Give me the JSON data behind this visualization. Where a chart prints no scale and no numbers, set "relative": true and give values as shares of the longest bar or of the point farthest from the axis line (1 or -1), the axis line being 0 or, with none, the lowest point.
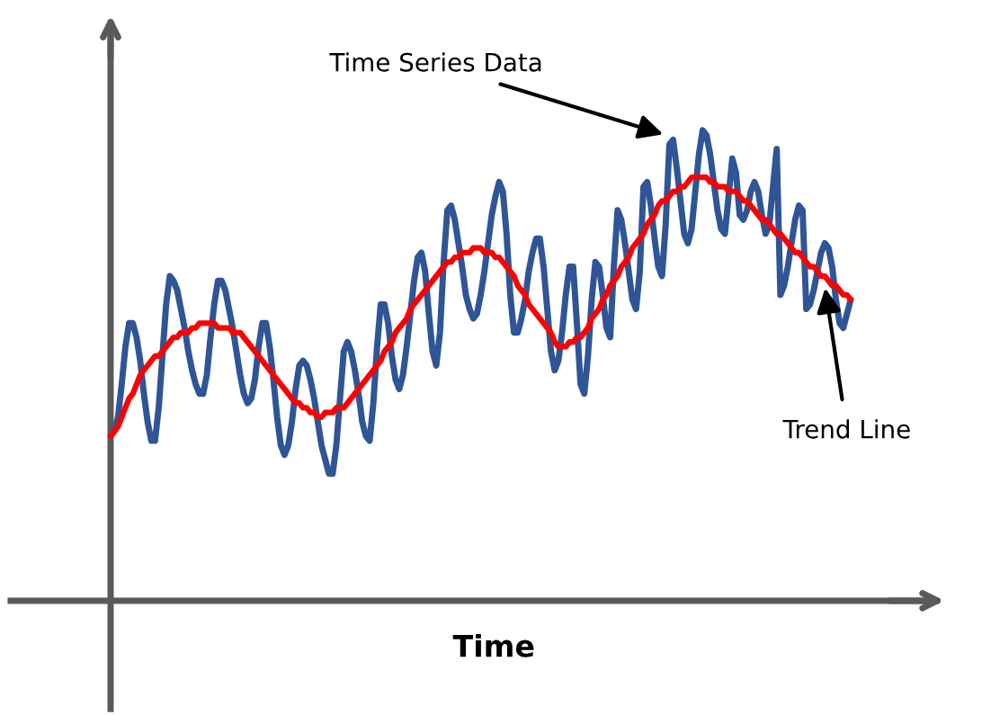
{
  "chart_data": {
    "type": "line",
    "relative": true,
    "xlabel": "Time",
    "tick_labels": false,
    "legend": false,
    "categories": [
      null,
      null,
      null,
      null,
      null,
      null,
      null,
      null,
      null,
      null,
      null,
      null,
      null,
      null,
      null,
      null,
      null,
      null,
      null,
      null,
      null,
      null,
      null,
      null,
      null,
      null,
      null,
      null,
      null,
      null,
      null,
      null,
      null,
      null,
      null,
      null,
      null,
      null,
      null,
      null,
      null,
      null,
      null,
      null,
      null,
      null,
      null,
      null,
      null,
      null,
      null,
      null,
      null,
      null,
      null,
      null,
      null,
      null,
      null,
      null,
      null,
      null,
      null,
      null,
      null,
      null,
      null,
      null,
      null,
      null,
      null,
      null,
      null,
      null,
      null,
      null,
      null,
      null,
      null,
      null,
      null,
      null,
      null,
      null,
      null,
      null,
      null,
      null,
      null,
      null,
      null,
      null,
      null,
      null,
      null,
      null,
      null,
      null,
      null,
      null,
      null,
      null,
      null,
      null,
      null,
      null,
      null,
      null,
      null,
      null,
      null,
      null,
      null,
      null,
      null,
      null,
      null,
      null,
      null,
      null,
      null,
      null,
      null,
      null,
      null,
      null,
      null,
      null,
      null,
      null,
      null,
      null,
      null,
      null,
      null,
      null,
      null,
      null,
      null,
      null,
      null,
      null,
      null,
      null,
      null,
      null,
      null,
      null,
      null,
      null,
      null,
      null,
      null,
      null,
      null,
      null,
      null,
      null,
      null,
      null,
      null,
      null,
      null,
      null,
      null,
      null,
      null,
      null,
      null,
      null,
      null,
      null,
      null,
      null,
      null,
      null,
      null,
      null,
      null,
      null,
      null,
      null,
      null,
      null,
      null,
      null,
      null,
      null,
      null,
      null,
      null,
      null,
      null,
      null,
      null,
      null,
      null,
      null,
      null,
      null,
      null
    ],
    "series": [
      {
        "color": "#2f5597",
        "values": [
          0.35,
          0.36,
          0.39,
          0.46,
          0.54,
          0.59,
          0.59,
          0.56,
          0.51,
          0.44,
          0.38,
          0.34,
          0.34,
          0.41,
          0.52,
          0.63,
          0.69,
          0.68,
          0.66,
          0.62,
          0.58,
          0.53,
          0.49,
          0.46,
          0.44,
          0.44,
          0.48,
          0.56,
          0.63,
          0.68,
          0.68,
          0.66,
          0.62,
          0.58,
          0.53,
          0.48,
          0.44,
          0.42,
          0.43,
          0.47,
          0.54,
          0.59,
          0.59,
          0.54,
          0.47,
          0.39,
          0.33,
          0.31,
          0.33,
          0.38,
          0.45,
          0.5,
          0.51,
          0.5,
          0.47,
          0.43,
          0.38,
          0.33,
          0.3,
          0.27,
          0.27,
          0.33,
          0.43,
          0.53,
          0.55,
          0.53,
          0.49,
          0.44,
          0.38,
          0.35,
          0.34,
          0.42,
          0.54,
          0.63,
          0.63,
          0.59,
          0.52,
          0.47,
          0.45,
          0.48,
          0.54,
          0.61,
          0.68,
          0.73,
          0.74,
          0.7,
          0.61,
          0.53,
          0.5,
          0.57,
          0.72,
          0.83,
          0.84,
          0.81,
          0.76,
          0.71,
          0.65,
          0.62,
          0.6,
          0.61,
          0.65,
          0.7,
          0.76,
          0.82,
          0.86,
          0.89,
          0.87,
          0.78,
          0.65,
          0.57,
          0.57,
          0.6,
          0.64,
          0.7,
          0.74,
          0.77,
          0.77,
          0.71,
          0.62,
          0.53,
          0.49,
          0.51,
          0.57,
          0.65,
          0.71,
          0.71,
          0.59,
          0.46,
          0.44,
          0.52,
          0.64,
          0.72,
          0.71,
          0.65,
          0.58,
          0.56,
          0.71,
          0.83,
          0.81,
          0.76,
          0.7,
          0.64,
          0.62,
          0.7,
          0.88,
          0.89,
          0.84,
          0.77,
          0.71,
          0.69,
          0.8,
          0.97,
          0.98,
          0.92,
          0.85,
          0.78,
          0.76,
          0.79,
          0.87,
          0.95,
          1.0,
          0.99,
          0.95,
          0.89,
          0.83,
          0.79,
          0.78,
          0.86,
          0.94,
          0.91,
          0.82,
          0.81,
          0.83,
          0.87,
          0.89,
          0.87,
          0.82,
          0.78,
          0.8,
          0.88,
          0.96,
          0.65,
          0.67,
          0.71,
          0.76,
          0.81,
          0.84,
          0.83,
          0.62,
          0.63,
          0.66,
          0.7,
          0.74,
          0.76,
          0.75,
          0.71,
          0.64,
          0.59,
          0.58,
          0.61,
          0.64
        ]
      },
      {
        "color": "#ff0000",
        "values": [
          0.35,
          0.36,
          0.37,
          0.39,
          0.41,
          0.43,
          0.44,
          0.46,
          0.48,
          0.49,
          0.5,
          0.51,
          0.52,
          0.52,
          0.53,
          0.54,
          0.55,
          0.56,
          0.56,
          0.57,
          0.57,
          0.57,
          0.58,
          0.58,
          0.59,
          0.59,
          0.59,
          0.59,
          0.59,
          0.58,
          0.58,
          0.58,
          0.58,
          0.57,
          0.57,
          0.57,
          0.56,
          0.55,
          0.54,
          0.53,
          0.52,
          0.51,
          0.5,
          0.49,
          0.48,
          0.47,
          0.46,
          0.45,
          0.44,
          0.43,
          0.42,
          0.42,
          0.41,
          0.41,
          0.4,
          0.4,
          0.39,
          0.39,
          0.4,
          0.4,
          0.4,
          0.41,
          0.41,
          0.41,
          0.42,
          0.43,
          0.44,
          0.45,
          0.46,
          0.47,
          0.48,
          0.49,
          0.5,
          0.51,
          0.53,
          0.54,
          0.55,
          0.57,
          0.58,
          0.59,
          0.6,
          0.62,
          0.63,
          0.64,
          0.65,
          0.66,
          0.67,
          0.68,
          0.69,
          0.7,
          0.71,
          0.72,
          0.72,
          0.73,
          0.73,
          0.74,
          0.74,
          0.74,
          0.75,
          0.75,
          0.75,
          0.74,
          0.74,
          0.74,
          0.73,
          0.73,
          0.72,
          0.71,
          0.7,
          0.69,
          0.67,
          0.66,
          0.65,
          0.63,
          0.62,
          0.61,
          0.6,
          0.59,
          0.58,
          0.57,
          0.55,
          0.54,
          0.54,
          0.54,
          0.55,
          0.55,
          0.56,
          0.56,
          0.57,
          0.58,
          0.6,
          0.61,
          0.62,
          0.64,
          0.65,
          0.67,
          0.68,
          0.69,
          0.71,
          0.72,
          0.73,
          0.75,
          0.76,
          0.77,
          0.78,
          0.8,
          0.81,
          0.82,
          0.84,
          0.85,
          0.85,
          0.86,
          0.87,
          0.87,
          0.88,
          0.88,
          0.89,
          0.9,
          0.9,
          0.9,
          0.9,
          0.9,
          0.89,
          0.89,
          0.88,
          0.88,
          0.88,
          0.87,
          0.87,
          0.87,
          0.86,
          0.85,
          0.85,
          0.84,
          0.83,
          0.82,
          0.81,
          0.81,
          0.8,
          0.79,
          0.78,
          0.78,
          0.77,
          0.76,
          0.75,
          0.74,
          0.74,
          0.73,
          0.72,
          0.71,
          0.71,
          0.7,
          0.69,
          0.69,
          0.68,
          0.67,
          0.67,
          0.66,
          0.65,
          0.65,
          0.64
        ]
      }
    ],
    "annotations": [
      "Time Series Data",
      "Trend Line"
    ]
  }
}
